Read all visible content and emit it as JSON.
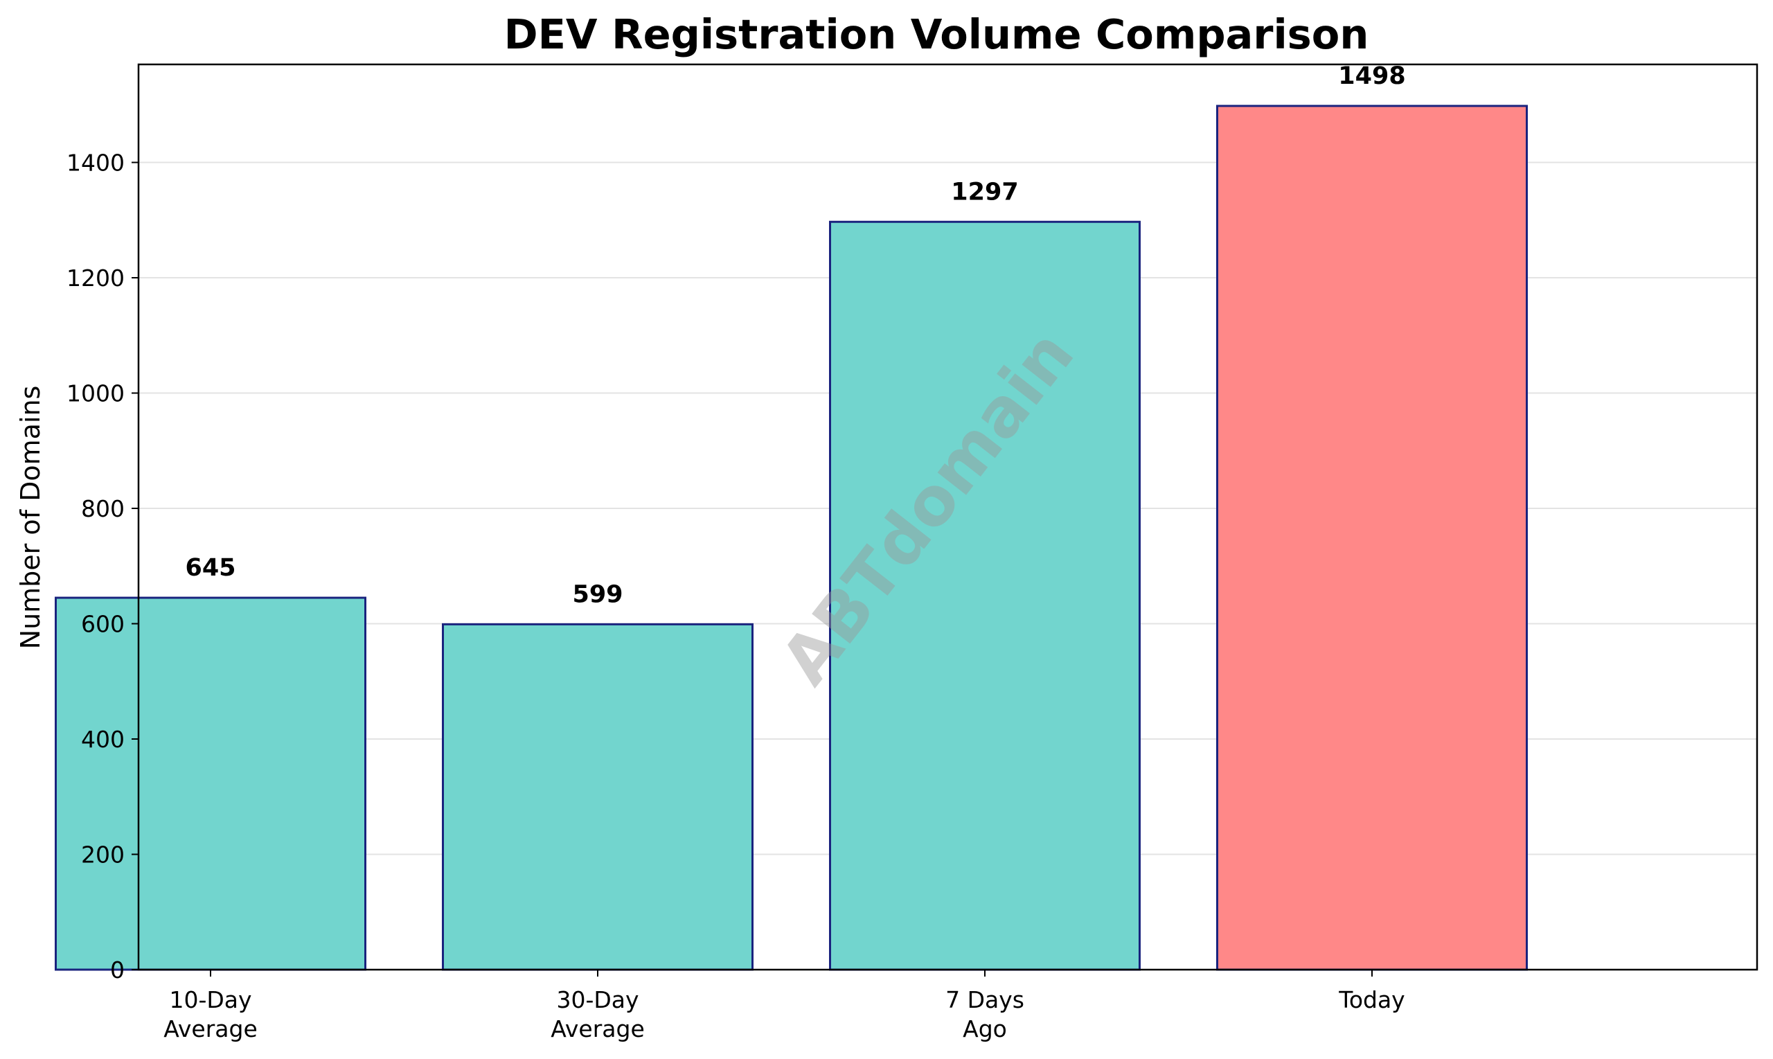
{
  "chart_data": {
    "type": "bar",
    "title": "DEV Registration Volume Comparison",
    "xlabel": "",
    "ylabel": "Number of Domains",
    "categories": [
      [
        "10-Day",
        "Average"
      ],
      [
        "30-Day",
        "Average"
      ],
      [
        "7 Days",
        "Ago"
      ],
      [
        "Today"
      ]
    ],
    "values": [
      645,
      599,
      1297,
      1498
    ],
    "data_labels": [
      "645",
      "599",
      "1297",
      "1498"
    ],
    "bar_colors": [
      "#72d5ce",
      "#72d5ce",
      "#72d5ce",
      "#ff8888"
    ],
    "bar_edge_color": "#1a237e",
    "ylim": [
      0,
      1570
    ],
    "yticks": [
      0,
      200,
      400,
      600,
      800,
      1000,
      1200,
      1400
    ],
    "grid": "y",
    "watermark": "ABTdomain"
  }
}
